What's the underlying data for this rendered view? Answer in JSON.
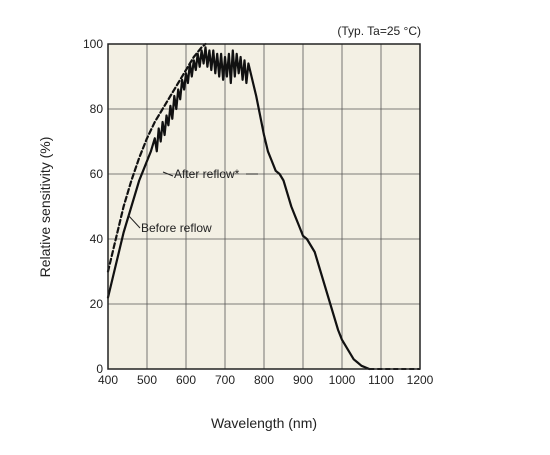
{
  "chart_data": {
    "type": "line",
    "condition_note": "(Typ. Ta=25 °C)",
    "xlabel": "Wavelength (nm)",
    "ylabel": "Relative sensitivity (%)",
    "xlim": [
      400,
      1200
    ],
    "ylim": [
      0,
      100
    ],
    "xticks": [
      400,
      500,
      600,
      700,
      800,
      900,
      1000,
      1100,
      1200
    ],
    "yticks": [
      0,
      20,
      40,
      60,
      80,
      100
    ],
    "grid": true,
    "series": [
      {
        "name": "After reflow*",
        "style": "solid",
        "points": [
          [
            400,
            22
          ],
          [
            410,
            27
          ],
          [
            420,
            32
          ],
          [
            430,
            37
          ],
          [
            440,
            42
          ],
          [
            450,
            46
          ],
          [
            460,
            50
          ],
          [
            470,
            54
          ],
          [
            480,
            58
          ],
          [
            490,
            61
          ],
          [
            500,
            64
          ],
          [
            510,
            67
          ],
          [
            520,
            71
          ],
          [
            525,
            67
          ],
          [
            530,
            74
          ],
          [
            535,
            70
          ],
          [
            540,
            76
          ],
          [
            545,
            72
          ],
          [
            550,
            78
          ],
          [
            555,
            75
          ],
          [
            560,
            81
          ],
          [
            565,
            77
          ],
          [
            570,
            84
          ],
          [
            575,
            80
          ],
          [
            580,
            86
          ],
          [
            585,
            83
          ],
          [
            590,
            89
          ],
          [
            595,
            86
          ],
          [
            600,
            91
          ],
          [
            605,
            88
          ],
          [
            610,
            94
          ],
          [
            615,
            90
          ],
          [
            620,
            95
          ],
          [
            625,
            92
          ],
          [
            630,
            97
          ],
          [
            635,
            93
          ],
          [
            640,
            98
          ],
          [
            645,
            94
          ],
          [
            650,
            99
          ],
          [
            655,
            93
          ],
          [
            660,
            98
          ],
          [
            665,
            92
          ],
          [
            670,
            98
          ],
          [
            675,
            91
          ],
          [
            680,
            97
          ],
          [
            685,
            90
          ],
          [
            690,
            97
          ],
          [
            695,
            89
          ],
          [
            700,
            96
          ],
          [
            705,
            90
          ],
          [
            710,
            97
          ],
          [
            715,
            88
          ],
          [
            720,
            98
          ],
          [
            725,
            90
          ],
          [
            730,
            97
          ],
          [
            735,
            91
          ],
          [
            740,
            96
          ],
          [
            745,
            89
          ],
          [
            750,
            95
          ],
          [
            755,
            88
          ],
          [
            760,
            94
          ],
          [
            770,
            89
          ],
          [
            780,
            84
          ],
          [
            790,
            78
          ],
          [
            800,
            72
          ],
          [
            810,
            67
          ],
          [
            820,
            64
          ],
          [
            830,
            61
          ],
          [
            840,
            60
          ],
          [
            850,
            58
          ],
          [
            860,
            54
          ],
          [
            870,
            50
          ],
          [
            880,
            47
          ],
          [
            890,
            44
          ],
          [
            900,
            41
          ],
          [
            910,
            40
          ],
          [
            920,
            38
          ],
          [
            930,
            36
          ],
          [
            940,
            32
          ],
          [
            950,
            28
          ],
          [
            960,
            24
          ],
          [
            970,
            20
          ],
          [
            980,
            16
          ],
          [
            990,
            12
          ],
          [
            1000,
            9
          ],
          [
            1010,
            7
          ],
          [
            1020,
            5
          ],
          [
            1030,
            3
          ],
          [
            1040,
            2
          ],
          [
            1050,
            1
          ],
          [
            1060,
            0.5
          ],
          [
            1070,
            0
          ]
        ]
      },
      {
        "name": "Before reflow",
        "style": "dashed",
        "points": [
          [
            400,
            30
          ],
          [
            420,
            40
          ],
          [
            440,
            50
          ],
          [
            460,
            58
          ],
          [
            480,
            65
          ],
          [
            500,
            71
          ],
          [
            520,
            76
          ],
          [
            540,
            80
          ],
          [
            560,
            84
          ],
          [
            580,
            88
          ],
          [
            600,
            92
          ],
          [
            620,
            96
          ],
          [
            640,
            99
          ],
          [
            650,
            100
          ]
        ]
      }
    ],
    "annotations": [
      {
        "text": "After reflow*"
      },
      {
        "text": "Before reflow"
      }
    ]
  }
}
